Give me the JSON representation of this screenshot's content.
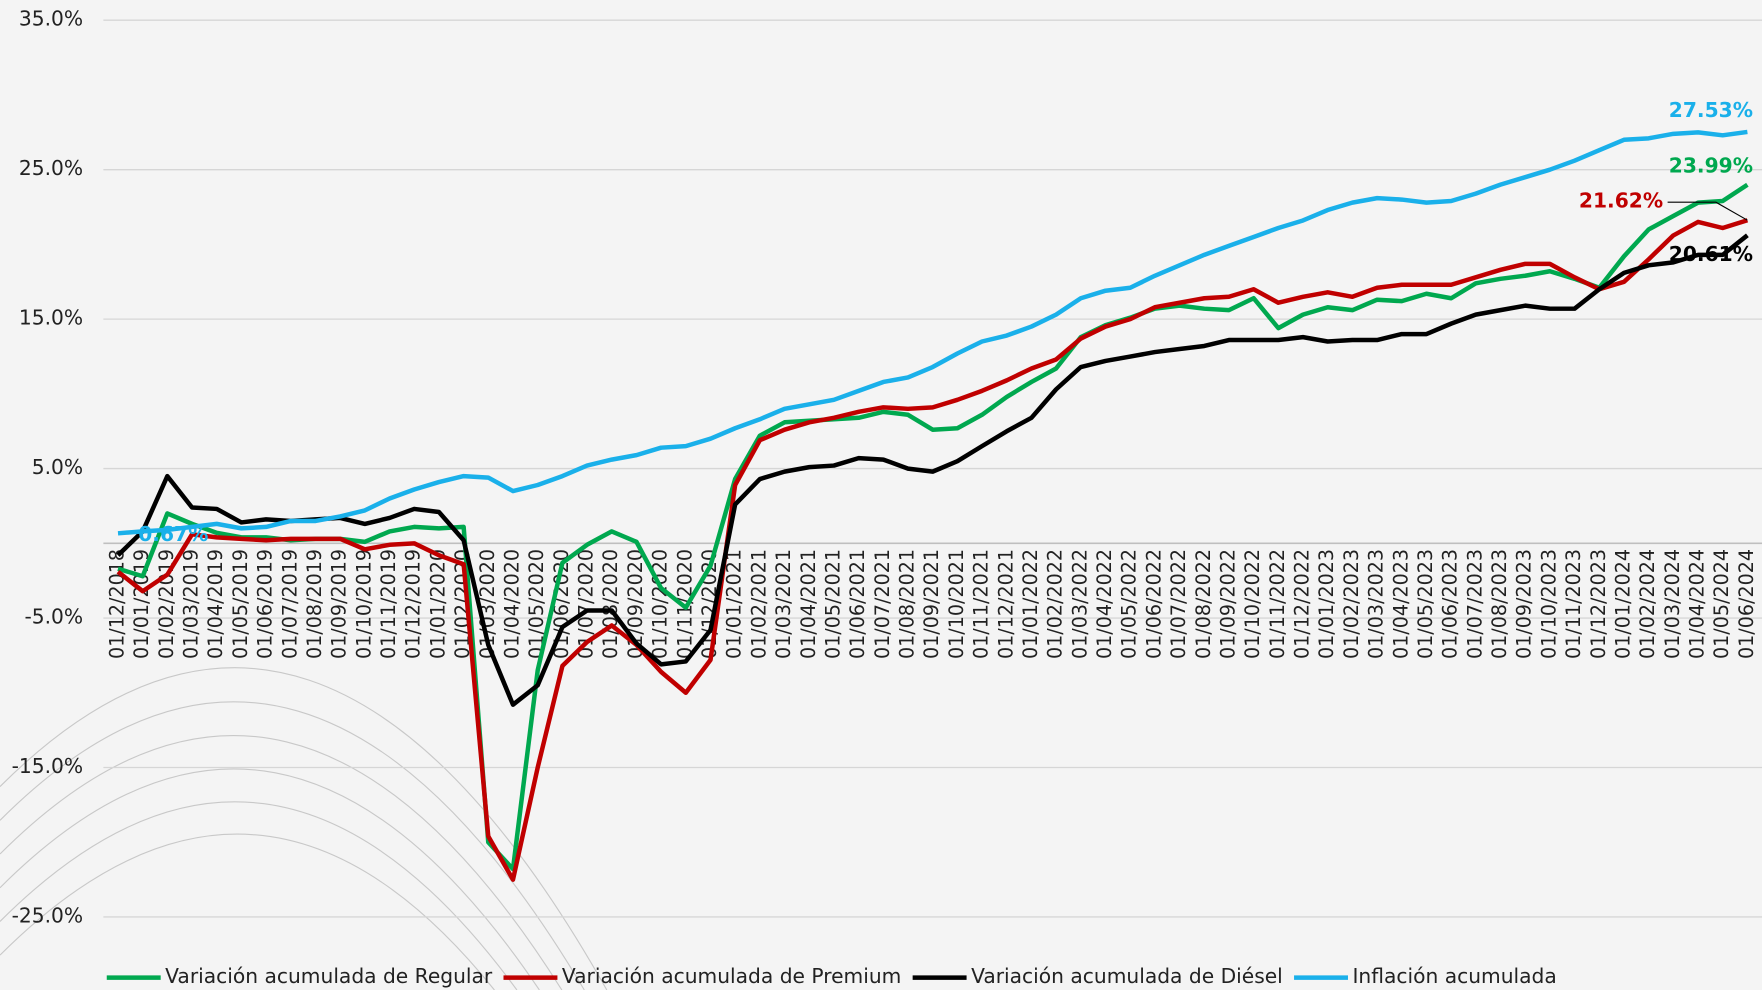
{
  "chart_data": {
    "type": "line",
    "categories": [
      "01/12/2018",
      "01/01/2019",
      "01/02/2019",
      "01/03/2019",
      "01/04/2019",
      "01/05/2019",
      "01/06/2019",
      "01/07/2019",
      "01/08/2019",
      "01/09/2019",
      "01/10/2019",
      "01/11/2019",
      "01/12/2019",
      "01/01/2020",
      "01/02/2020",
      "01/03/2020",
      "01/04/2020",
      "01/05/2020",
      "01/06/2020",
      "01/07/2020",
      "01/08/2020",
      "01/09/2020",
      "01/10/2020",
      "01/11/2020",
      "01/12/2020",
      "01/01/2021",
      "01/02/2021",
      "01/03/2021",
      "01/04/2021",
      "01/05/2021",
      "01/06/2021",
      "01/07/2021",
      "01/08/2021",
      "01/09/2021",
      "01/10/2021",
      "01/11/2021",
      "01/12/2021",
      "01/01/2022",
      "01/02/2022",
      "01/03/2022",
      "01/04/2022",
      "01/05/2022",
      "01/06/2022",
      "01/07/2022",
      "01/08/2022",
      "01/09/2022",
      "01/10/2022",
      "01/11/2022",
      "01/12/2022",
      "01/01/2023",
      "01/02/2023",
      "01/03/2023",
      "01/04/2023",
      "01/05/2023",
      "01/06/2023",
      "01/07/2023",
      "01/08/2023",
      "01/09/2023",
      "01/10/2023",
      "01/11/2023",
      "01/12/2023",
      "01/01/2024",
      "01/02/2024",
      "01/03/2024",
      "01/04/2024",
      "01/05/2024",
      "01/06/2024"
    ],
    "series": [
      {
        "name": "Variación acumulada de Regular",
        "color": "#00a84f",
        "values": [
          -1.7,
          -2.2,
          2.0,
          1.3,
          0.7,
          0.4,
          0.4,
          0.2,
          0.3,
          0.3,
          0.1,
          0.8,
          1.1,
          1.0,
          1.1,
          -20.0,
          -21.8,
          -8.5,
          -1.3,
          -0.1,
          0.8,
          0.1,
          -3.0,
          -4.3,
          -1.5,
          4.3,
          7.2,
          8.1,
          8.2,
          8.3,
          8.4,
          8.8,
          8.6,
          7.6,
          7.7,
          8.6,
          9.8,
          10.8,
          11.7,
          13.8,
          14.6,
          15.1,
          15.7,
          15.9,
          15.7,
          15.6,
          16.4,
          14.4,
          15.3,
          15.8,
          15.6,
          16.3,
          16.2,
          16.7,
          16.4,
          17.4,
          17.7,
          17.9,
          18.2,
          17.7,
          17.1,
          19.2,
          21.0,
          21.9,
          22.8,
          22.9,
          23.99
        ],
        "value_labels": [
          null,
          null,
          null,
          null,
          null,
          null,
          null,
          null,
          null,
          null,
          null,
          null,
          null,
          null,
          null,
          null,
          null,
          null,
          null,
          null,
          null,
          null,
          null,
          null,
          null,
          null,
          null,
          null,
          null,
          null,
          null,
          null,
          null,
          null,
          null,
          null,
          null,
          null,
          null,
          null,
          null,
          null,
          null,
          null,
          null,
          null,
          null,
          null,
          null,
          null,
          null,
          null,
          null,
          null,
          null,
          null,
          null,
          null,
          null,
          null,
          null,
          null,
          null,
          null,
          null,
          null,
          "23.99%"
        ]
      },
      {
        "name": "Variación acumulada de Premium",
        "color": "#c00000",
        "values": [
          -1.9,
          -3.2,
          -2.1,
          0.6,
          0.4,
          0.3,
          0.2,
          0.3,
          0.3,
          0.3,
          -0.4,
          -0.1,
          0.0,
          -0.8,
          -1.4,
          -19.6,
          -22.5,
          -15.0,
          -8.2,
          -6.6,
          -5.5,
          -6.8,
          -8.6,
          -10.0,
          -7.8,
          3.9,
          6.9,
          7.6,
          8.1,
          8.4,
          8.8,
          9.1,
          9.0,
          9.1,
          9.6,
          10.2,
          10.9,
          11.7,
          12.3,
          13.7,
          14.5,
          15.0,
          15.8,
          16.1,
          16.4,
          16.5,
          17.0,
          16.1,
          16.5,
          16.8,
          16.5,
          17.1,
          17.3,
          17.3,
          17.3,
          17.8,
          18.3,
          18.7,
          18.7,
          17.8,
          17.0,
          17.5,
          19.0,
          20.6,
          21.5,
          21.1,
          21.62
        ],
        "value_labels": [
          null,
          null,
          null,
          null,
          null,
          null,
          null,
          null,
          null,
          null,
          null,
          null,
          null,
          null,
          null,
          null,
          null,
          null,
          null,
          null,
          null,
          null,
          null,
          null,
          null,
          null,
          null,
          null,
          null,
          null,
          null,
          null,
          null,
          null,
          null,
          null,
          null,
          null,
          null,
          null,
          null,
          null,
          null,
          null,
          null,
          null,
          null,
          null,
          null,
          null,
          null,
          null,
          null,
          null,
          null,
          null,
          null,
          null,
          null,
          null,
          null,
          null,
          null,
          null,
          null,
          null,
          "21.62%"
        ]
      },
      {
        "name": "Variación acumulada de Diésel",
        "color": "#000000",
        "values": [
          -0.8,
          0.8,
          4.5,
          2.4,
          2.3,
          1.4,
          1.6,
          1.5,
          1.6,
          1.7,
          1.3,
          1.7,
          2.3,
          2.1,
          0.2,
          -6.8,
          -10.8,
          -9.5,
          -5.6,
          -4.5,
          -4.5,
          -6.7,
          -8.1,
          -7.9,
          -5.8,
          2.6,
          4.3,
          4.8,
          5.1,
          5.2,
          5.7,
          5.6,
          5.0,
          4.8,
          5.5,
          6.5,
          7.5,
          8.4,
          10.3,
          11.8,
          12.2,
          12.5,
          12.8,
          13.0,
          13.2,
          13.6,
          13.6,
          13.6,
          13.8,
          13.5,
          13.6,
          13.6,
          14.0,
          14.0,
          14.7,
          15.3,
          15.6,
          15.9,
          15.7,
          15.7,
          17.0,
          18.1,
          18.6,
          18.8,
          19.3,
          19.3,
          20.61
        ],
        "value_labels": [
          null,
          null,
          null,
          null,
          null,
          null,
          null,
          null,
          null,
          null,
          null,
          null,
          null,
          null,
          null,
          null,
          null,
          null,
          null,
          null,
          null,
          null,
          null,
          null,
          null,
          null,
          null,
          null,
          null,
          null,
          null,
          null,
          null,
          null,
          null,
          null,
          null,
          null,
          null,
          null,
          null,
          null,
          null,
          null,
          null,
          null,
          null,
          null,
          null,
          null,
          null,
          null,
          null,
          null,
          null,
          null,
          null,
          null,
          null,
          null,
          null,
          null,
          null,
          null,
          null,
          null,
          "20.61%"
        ]
      },
      {
        "name": "Inflación acumulada",
        "color": "#1ab0ea",
        "values": [
          0.67,
          0.8,
          0.9,
          1.1,
          1.3,
          1.0,
          1.1,
          1.5,
          1.5,
          1.8,
          2.2,
          3.0,
          3.6,
          4.1,
          4.5,
          4.4,
          3.5,
          3.9,
          4.5,
          5.2,
          5.6,
          5.9,
          6.4,
          6.5,
          7.0,
          7.7,
          8.3,
          9.0,
          9.3,
          9.6,
          10.2,
          10.8,
          11.1,
          11.8,
          12.7,
          13.5,
          13.9,
          14.5,
          15.3,
          16.4,
          16.9,
          17.1,
          17.9,
          18.6,
          19.3,
          19.9,
          20.5,
          21.1,
          21.6,
          22.3,
          22.8,
          23.1,
          23.0,
          22.8,
          22.9,
          23.4,
          24.0,
          24.5,
          25.0,
          25.6,
          26.3,
          27.0,
          27.1,
          27.4,
          27.5,
          27.3,
          27.53
        ],
        "value_labels": [
          "0.67%",
          null,
          null,
          null,
          null,
          null,
          null,
          null,
          null,
          null,
          null,
          null,
          null,
          null,
          null,
          null,
          null,
          null,
          null,
          null,
          null,
          null,
          null,
          null,
          null,
          null,
          null,
          null,
          null,
          null,
          null,
          null,
          null,
          null,
          null,
          null,
          null,
          null,
          null,
          null,
          null,
          null,
          null,
          null,
          null,
          null,
          null,
          null,
          null,
          null,
          null,
          null,
          null,
          null,
          null,
          null,
          null,
          null,
          null,
          null,
          null,
          null,
          null,
          null,
          null,
          null,
          "27.53%"
        ]
      }
    ],
    "ylim": [
      -25,
      35
    ],
    "yticks": [
      {
        "value": -25,
        "label": "-25.0%"
      },
      {
        "value": -15,
        "label": "-15.0%"
      },
      {
        "value": -5,
        "label": "-5.0%"
      },
      {
        "value": 5,
        "label": "5.0%"
      },
      {
        "value": 15,
        "label": "15.0%"
      },
      {
        "value": 25,
        "label": "25.0%"
      },
      {
        "value": 35,
        "label": "35.0%"
      }
    ],
    "grid": true,
    "legend": "bottom"
  }
}
